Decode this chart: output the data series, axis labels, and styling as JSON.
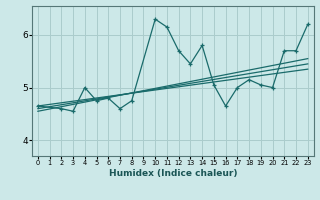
{
  "xlabel": "Humidex (Indice chaleur)",
  "ylabel": "",
  "bg_color": "#cce8e8",
  "grid_color": "#aacccc",
  "line_color": "#1a6b6b",
  "xlim": [
    -0.5,
    23.5
  ],
  "ylim": [
    3.7,
    6.55
  ],
  "xticks": [
    0,
    1,
    2,
    3,
    4,
    5,
    6,
    7,
    8,
    9,
    10,
    11,
    12,
    13,
    14,
    15,
    16,
    17,
    18,
    19,
    20,
    21,
    22,
    23
  ],
  "yticks": [
    4,
    5,
    6
  ],
  "series1_x": [
    0,
    2,
    3,
    4,
    5,
    6,
    7,
    8,
    10,
    11,
    12,
    13,
    14,
    15,
    16,
    17,
    18,
    19,
    20,
    21,
    22,
    23
  ],
  "series1_y": [
    4.65,
    4.6,
    4.55,
    5.0,
    4.75,
    4.8,
    4.6,
    4.75,
    6.3,
    6.15,
    5.7,
    5.45,
    5.8,
    5.05,
    4.65,
    5.0,
    5.15,
    5.05,
    5.0,
    5.7,
    5.7,
    6.2
  ],
  "trend1_x": [
    0,
    23
  ],
  "trend1_y": [
    4.55,
    5.55
  ],
  "trend2_x": [
    0,
    23
  ],
  "trend2_y": [
    4.65,
    5.35
  ],
  "trend3_x": [
    0,
    23
  ],
  "trend3_y": [
    4.6,
    5.45
  ]
}
